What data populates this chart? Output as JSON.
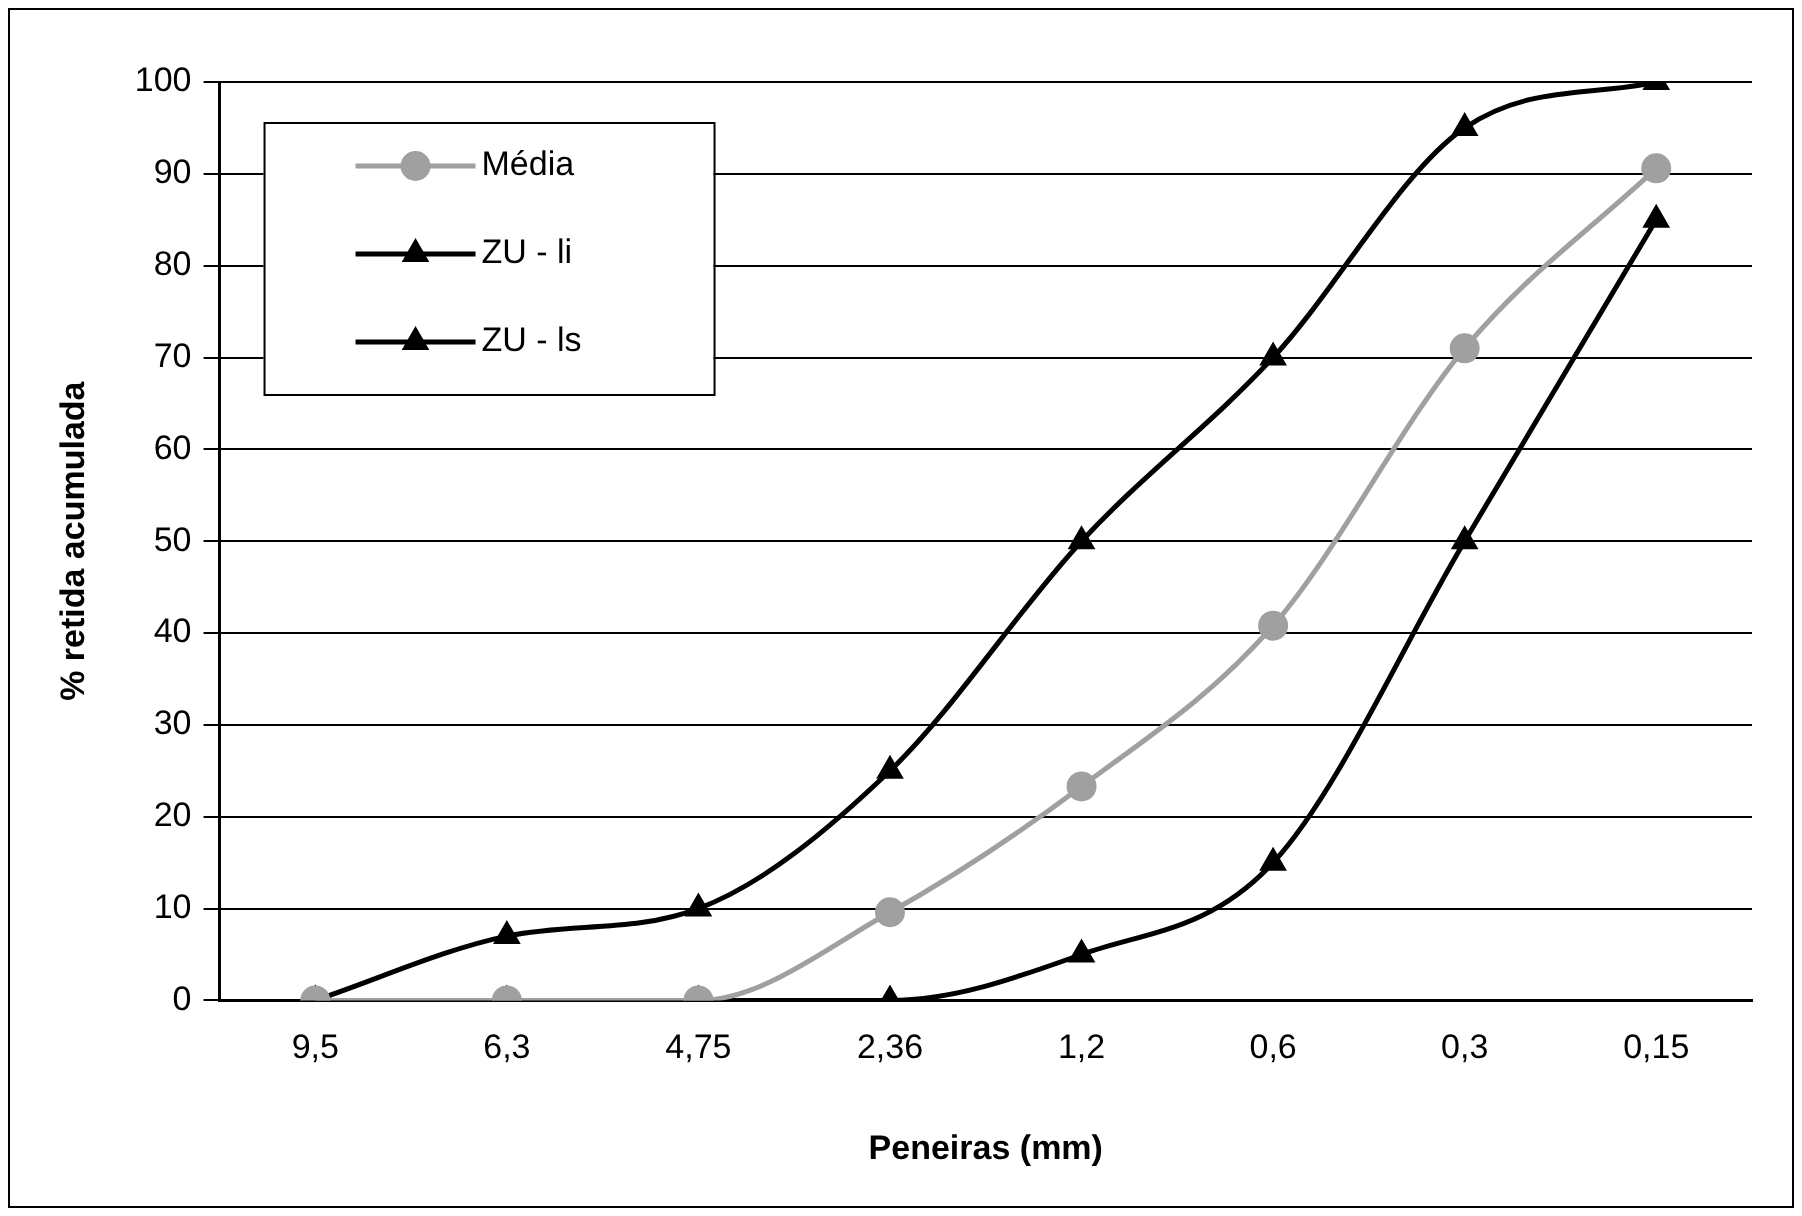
{
  "chart_data": {
    "type": "line",
    "xlabel": "Peneiras (mm)",
    "ylabel": "% retida acumulada",
    "categories": [
      "9,5",
      "6,3",
      "4,75",
      "2,36",
      "1,2",
      "0,6",
      "0,3",
      "0,15"
    ],
    "series": [
      {
        "name": "Média",
        "color": "#a0a0a0",
        "marker": "circle",
        "values": [
          0,
          0,
          0,
          9.6,
          23.3,
          40.8,
          71,
          90.6
        ]
      },
      {
        "name": "ZU - li",
        "color": "#000000",
        "marker": "triangle",
        "values": [
          0,
          0,
          0,
          0,
          5,
          15,
          50,
          85
        ]
      },
      {
        "name": "ZU - ls",
        "color": "#000000",
        "marker": "triangle",
        "values": [
          0,
          7,
          10,
          25,
          50,
          70,
          95,
          100
        ]
      }
    ],
    "ylim": [
      0,
      100
    ],
    "yticks": [
      0,
      10,
      20,
      30,
      40,
      50,
      60,
      70,
      80,
      90,
      100
    ],
    "grid": "y",
    "legend": "top left"
  }
}
